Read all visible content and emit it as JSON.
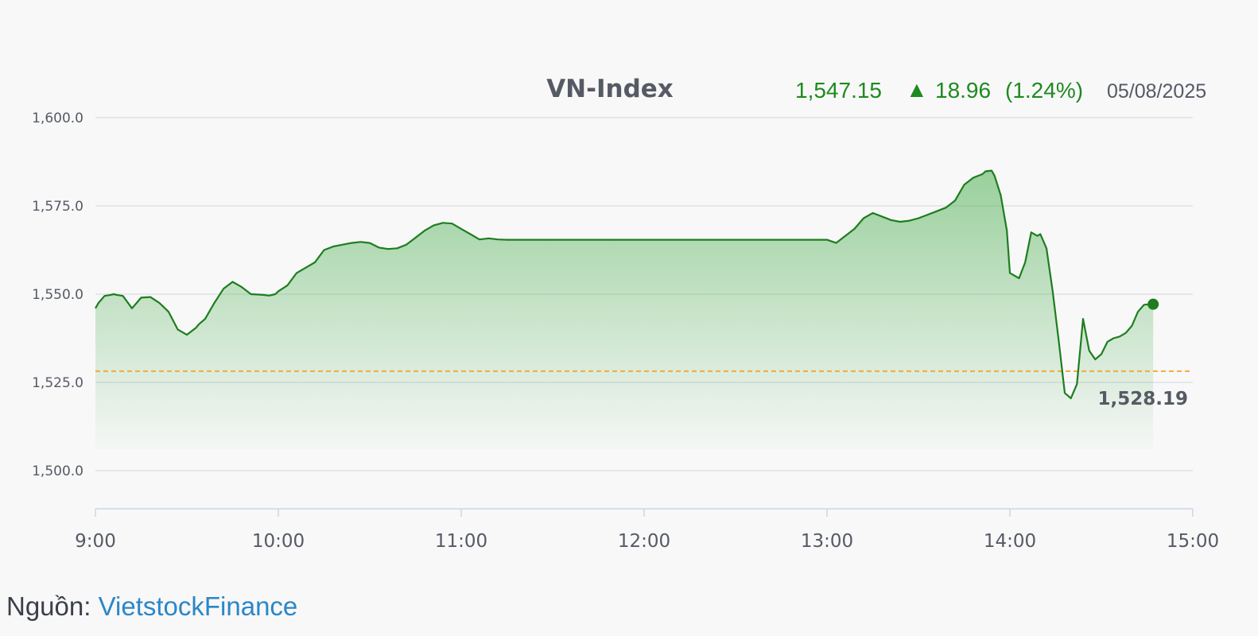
{
  "chart_data": {
    "type": "area",
    "title": "VN-Index",
    "quote": {
      "last": "1,547.15",
      "direction": "up",
      "change": "18.96",
      "change_pct": "(1.24%)",
      "date": "05/08/2025",
      "up_color": "#1e8a1e",
      "up_arrow": "▲"
    },
    "reference": {
      "value": 1528.19,
      "label": "1,528.19",
      "color": "#f2a93b"
    },
    "ylim": [
      1490,
      1605
    ],
    "xlim": [
      "9:00",
      "15:00"
    ],
    "y_ticks": [
      {
        "value": 1600,
        "label": "1,600.0"
      },
      {
        "value": 1575,
        "label": "1,575.0"
      },
      {
        "value": 1550,
        "label": "1,550.0"
      },
      {
        "value": 1525,
        "label": "1,525.0"
      },
      {
        "value": 1500,
        "label": "1,500.0"
      }
    ],
    "x_ticks": [
      "9:00",
      "10:00",
      "11:00",
      "12:00",
      "13:00",
      "14:00",
      "15:00"
    ],
    "grid": true,
    "line_color": "#1e7d1e",
    "fill_color": "#4caf50",
    "x": [
      "9:00",
      "9:01",
      "9:03",
      "9:05",
      "9:06",
      "9:07",
      "9:09",
      "9:12",
      "9:15",
      "9:18",
      "9:21",
      "9:24",
      "9:27",
      "9:30",
      "9:33",
      "9:34",
      "9:36",
      "9:39",
      "9:42",
      "9:45",
      "9:48",
      "9:51",
      "9:55",
      "9:57",
      "9:59",
      "10:00",
      "10:03",
      "10:06",
      "10:09",
      "10:12",
      "10:15",
      "10:18",
      "10:21",
      "10:24",
      "10:27",
      "10:30",
      "10:33",
      "10:36",
      "10:39",
      "10:42",
      "10:45",
      "10:48",
      "10:51",
      "10:54",
      "10:57",
      "11:00",
      "11:03",
      "11:06",
      "11:09",
      "11:12",
      "11:15",
      "11:18",
      "11:21",
      "11:24",
      "11:27",
      "11:30",
      "11:31",
      "13:00",
      "13:03",
      "13:06",
      "13:09",
      "13:12",
      "13:15",
      "13:18",
      "13:21",
      "13:24",
      "13:27",
      "13:30",
      "13:33",
      "13:36",
      "13:39",
      "13:42",
      "13:45",
      "13:48",
      "13:51",
      "13:52",
      "13:54",
      "13:55",
      "13:57",
      "13:59",
      "14:00",
      "14:03",
      "14:05",
      "14:07",
      "14:09",
      "14:10",
      "14:12",
      "14:14",
      "14:16",
      "14:18",
      "14:20",
      "14:22",
      "14:24",
      "14:26",
      "14:28",
      "14:30",
      "14:32",
      "14:34",
      "14:36",
      "14:38",
      "14:40",
      "14:42",
      "14:44",
      "14:46",
      "14:47"
    ],
    "values": [
      1546.0,
      1547.5,
      1549.5,
      1549.8,
      1550.0,
      1549.8,
      1549.5,
      1546.0,
      1549.0,
      1549.2,
      1547.5,
      1545.0,
      1540.0,
      1538.5,
      1540.5,
      1541.5,
      1543.0,
      1547.5,
      1551.5,
      1553.5,
      1552.0,
      1550.0,
      1549.8,
      1549.6,
      1550.0,
      1550.8,
      1552.5,
      1556.0,
      1557.5,
      1559.0,
      1562.5,
      1563.5,
      1564.0,
      1564.5,
      1564.8,
      1564.5,
      1563.2,
      1562.8,
      1563.0,
      1564.0,
      1566.0,
      1568.0,
      1569.5,
      1570.2,
      1570.0,
      1568.5,
      1567.0,
      1565.5,
      1565.8,
      1565.5,
      1565.4,
      1565.4,
      1565.4,
      1565.4,
      1565.4,
      1565.4,
      1565.4,
      1565.4,
      1564.5,
      1566.5,
      1568.5,
      1571.5,
      1573.0,
      1572.0,
      1571.0,
      1570.5,
      1570.8,
      1571.5,
      1572.5,
      1573.5,
      1574.5,
      1576.5,
      1581.0,
      1583.0,
      1584.0,
      1584.8,
      1585.0,
      1583.5,
      1578.0,
      1568.0,
      1556.0,
      1554.5,
      1559.0,
      1567.5,
      1566.5,
      1567.0,
      1563.0,
      1551.0,
      1537.0,
      1522.0,
      1520.5,
      1524.5,
      1543.0,
      1534.0,
      1531.5,
      1533.0,
      1536.5,
      1537.5,
      1538.0,
      1539.0,
      1541.0,
      1545.0,
      1547.0,
      1547.15,
      1547.15
    ]
  },
  "source": {
    "label": "Nguồn:",
    "link_text": "VietstockFinance"
  }
}
